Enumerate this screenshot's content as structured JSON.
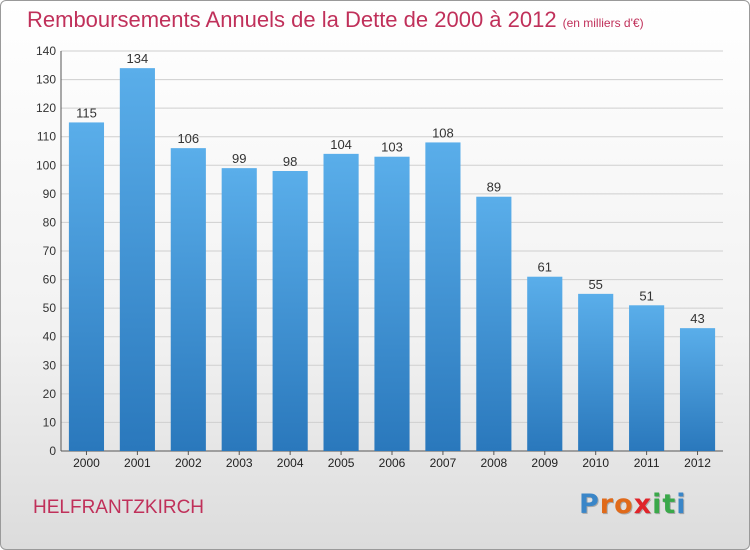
{
  "title": "Remboursements Annuels de la Dette de 2000 à 2012",
  "subtitle": "(en milliers d'€)",
  "town": "HELFRANTZKIRCH",
  "brand": {
    "letters": [
      "P",
      "r",
      "o",
      "x",
      "i",
      "t",
      "i"
    ],
    "colors": [
      "#3a86c8",
      "#e06a1a",
      "#e06a1a",
      "#e0242a",
      "#3aa84a",
      "#3aa84a",
      "#3a86c8"
    ]
  },
  "colors": {
    "title": "#c0305a",
    "bar_top": "#5aaeea",
    "bar_bottom": "#2a78bc"
  },
  "chart_data": {
    "type": "bar",
    "categories": [
      "2000",
      "2001",
      "2002",
      "2003",
      "2004",
      "2005",
      "2006",
      "2007",
      "2008",
      "2009",
      "2010",
      "2011",
      "2012"
    ],
    "values": [
      115,
      134,
      106,
      99,
      98,
      104,
      103,
      108,
      89,
      61,
      55,
      51,
      43
    ],
    "ylim": [
      0,
      140
    ],
    "yticks": [
      0,
      10,
      20,
      30,
      40,
      50,
      60,
      70,
      80,
      90,
      100,
      110,
      120,
      130,
      140
    ],
    "grid": true,
    "legend": "none"
  }
}
